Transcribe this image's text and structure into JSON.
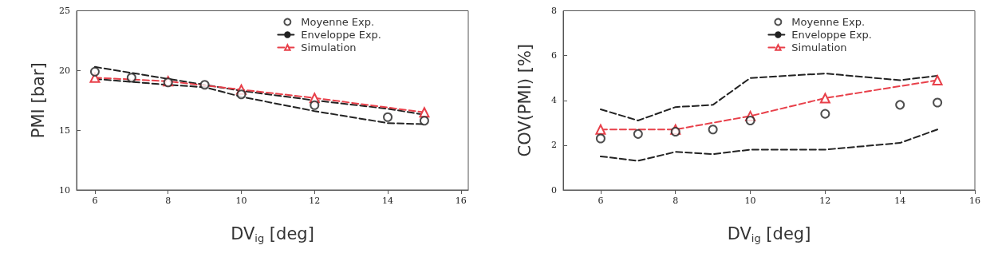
{
  "chart_data": [
    {
      "type": "line",
      "xlabel": "DV$_{ig}$ [deg]",
      "ylabel": "PMI [bar]",
      "xlim": [
        5.5,
        16.2
      ],
      "xticks": [
        6,
        8,
        10,
        12,
        14,
        16
      ],
      "ylim": [
        10,
        25
      ],
      "yticks": [
        10,
        15,
        20,
        25
      ],
      "grid": false,
      "legend": "top right",
      "series": [
        {
          "name": "Moyenne Exp.",
          "type": "scatter",
          "marker": "circle",
          "color": "#222222",
          "x": [
            6,
            7,
            8,
            9,
            10,
            12,
            14,
            15
          ],
          "values": [
            19.9,
            19.4,
            19.0,
            18.8,
            18.0,
            17.1,
            16.1,
            15.8
          ]
        },
        {
          "name": "Enveloppe Exp.",
          "marker": "none",
          "line_style": "dashed",
          "color": "#222222",
          "x": [
            6,
            8,
            10,
            12,
            14,
            15
          ],
          "values": [
            20.3,
            19.3,
            18.3,
            17.5,
            16.8,
            16.3
          ]
        },
        {
          "marker": "none",
          "line_style": "dashed",
          "color": "#222222",
          "x": [
            6,
            8,
            9,
            10,
            12,
            14,
            15
          ],
          "values": [
            19.3,
            18.8,
            18.6,
            17.8,
            16.6,
            15.6,
            15.5
          ]
        },
        {
          "name": "Simulation",
          "marker": "triangle",
          "line_style": "dashed",
          "color": "#e8404a",
          "x": [
            6,
            8,
            10,
            12,
            15
          ],
          "values": [
            19.4,
            19.1,
            18.4,
            17.7,
            16.5
          ]
        }
      ]
    },
    {
      "type": "line",
      "xlabel": "DV$_{ig}$ [deg]",
      "ylabel": "COV(PMI) [%]",
      "xlim": [
        5,
        16
      ],
      "xticks": [
        6,
        8,
        10,
        12,
        14,
        16
      ],
      "ylim": [
        0,
        8
      ],
      "yticks": [
        0,
        2,
        4,
        6,
        8
      ],
      "grid": false,
      "legend": "top right",
      "series": [
        {
          "name": "Moyenne Exp.",
          "type": "scatter",
          "marker": "circle",
          "color": "#222222",
          "x": [
            6,
            7,
            8,
            9,
            10,
            12,
            14,
            15
          ],
          "values": [
            2.3,
            2.5,
            2.6,
            2.7,
            3.1,
            3.4,
            3.8,
            3.9
          ]
        },
        {
          "name": "Enveloppe Exp.",
          "marker": "none",
          "line_style": "dashed",
          "color": "#222222",
          "x": [
            6,
            7,
            8,
            9,
            10,
            12,
            14,
            15
          ],
          "values": [
            3.6,
            3.1,
            3.7,
            3.8,
            5.0,
            5.2,
            4.9,
            5.1
          ]
        },
        {
          "marker": "none",
          "line_style": "dashed",
          "color": "#222222",
          "x": [
            6,
            7,
            8,
            9,
            10,
            12,
            14,
            15
          ],
          "values": [
            1.5,
            1.3,
            1.7,
            1.6,
            1.8,
            1.8,
            2.1,
            2.7
          ]
        },
        {
          "name": "Simulation",
          "marker": "triangle",
          "line_style": "dashed",
          "color": "#e8404a",
          "x": [
            6,
            8,
            10,
            12,
            15
          ],
          "values": [
            2.7,
            2.7,
            3.3,
            4.1,
            4.9
          ]
        }
      ]
    }
  ]
}
